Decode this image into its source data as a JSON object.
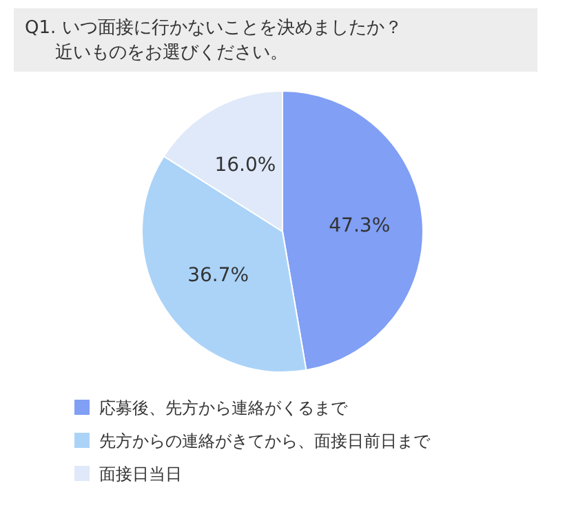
{
  "chart_data": {
    "type": "pie",
    "title": "Q1. いつ面接に行かないことを決めましたか？",
    "subtitle": "近いものをお選びください。",
    "categories": [
      "応募後、先方から連絡がくるまで",
      "先方からの連絡がきてから、面接日前日まで",
      "面接日当日"
    ],
    "values": [
      47.3,
      36.7,
      16.0
    ],
    "value_labels": [
      "47.3%",
      "36.7%",
      "16.0%"
    ],
    "colors": [
      "#809ff5",
      "#abd3f8",
      "#dfe9f9"
    ],
    "legend": "bottom"
  }
}
